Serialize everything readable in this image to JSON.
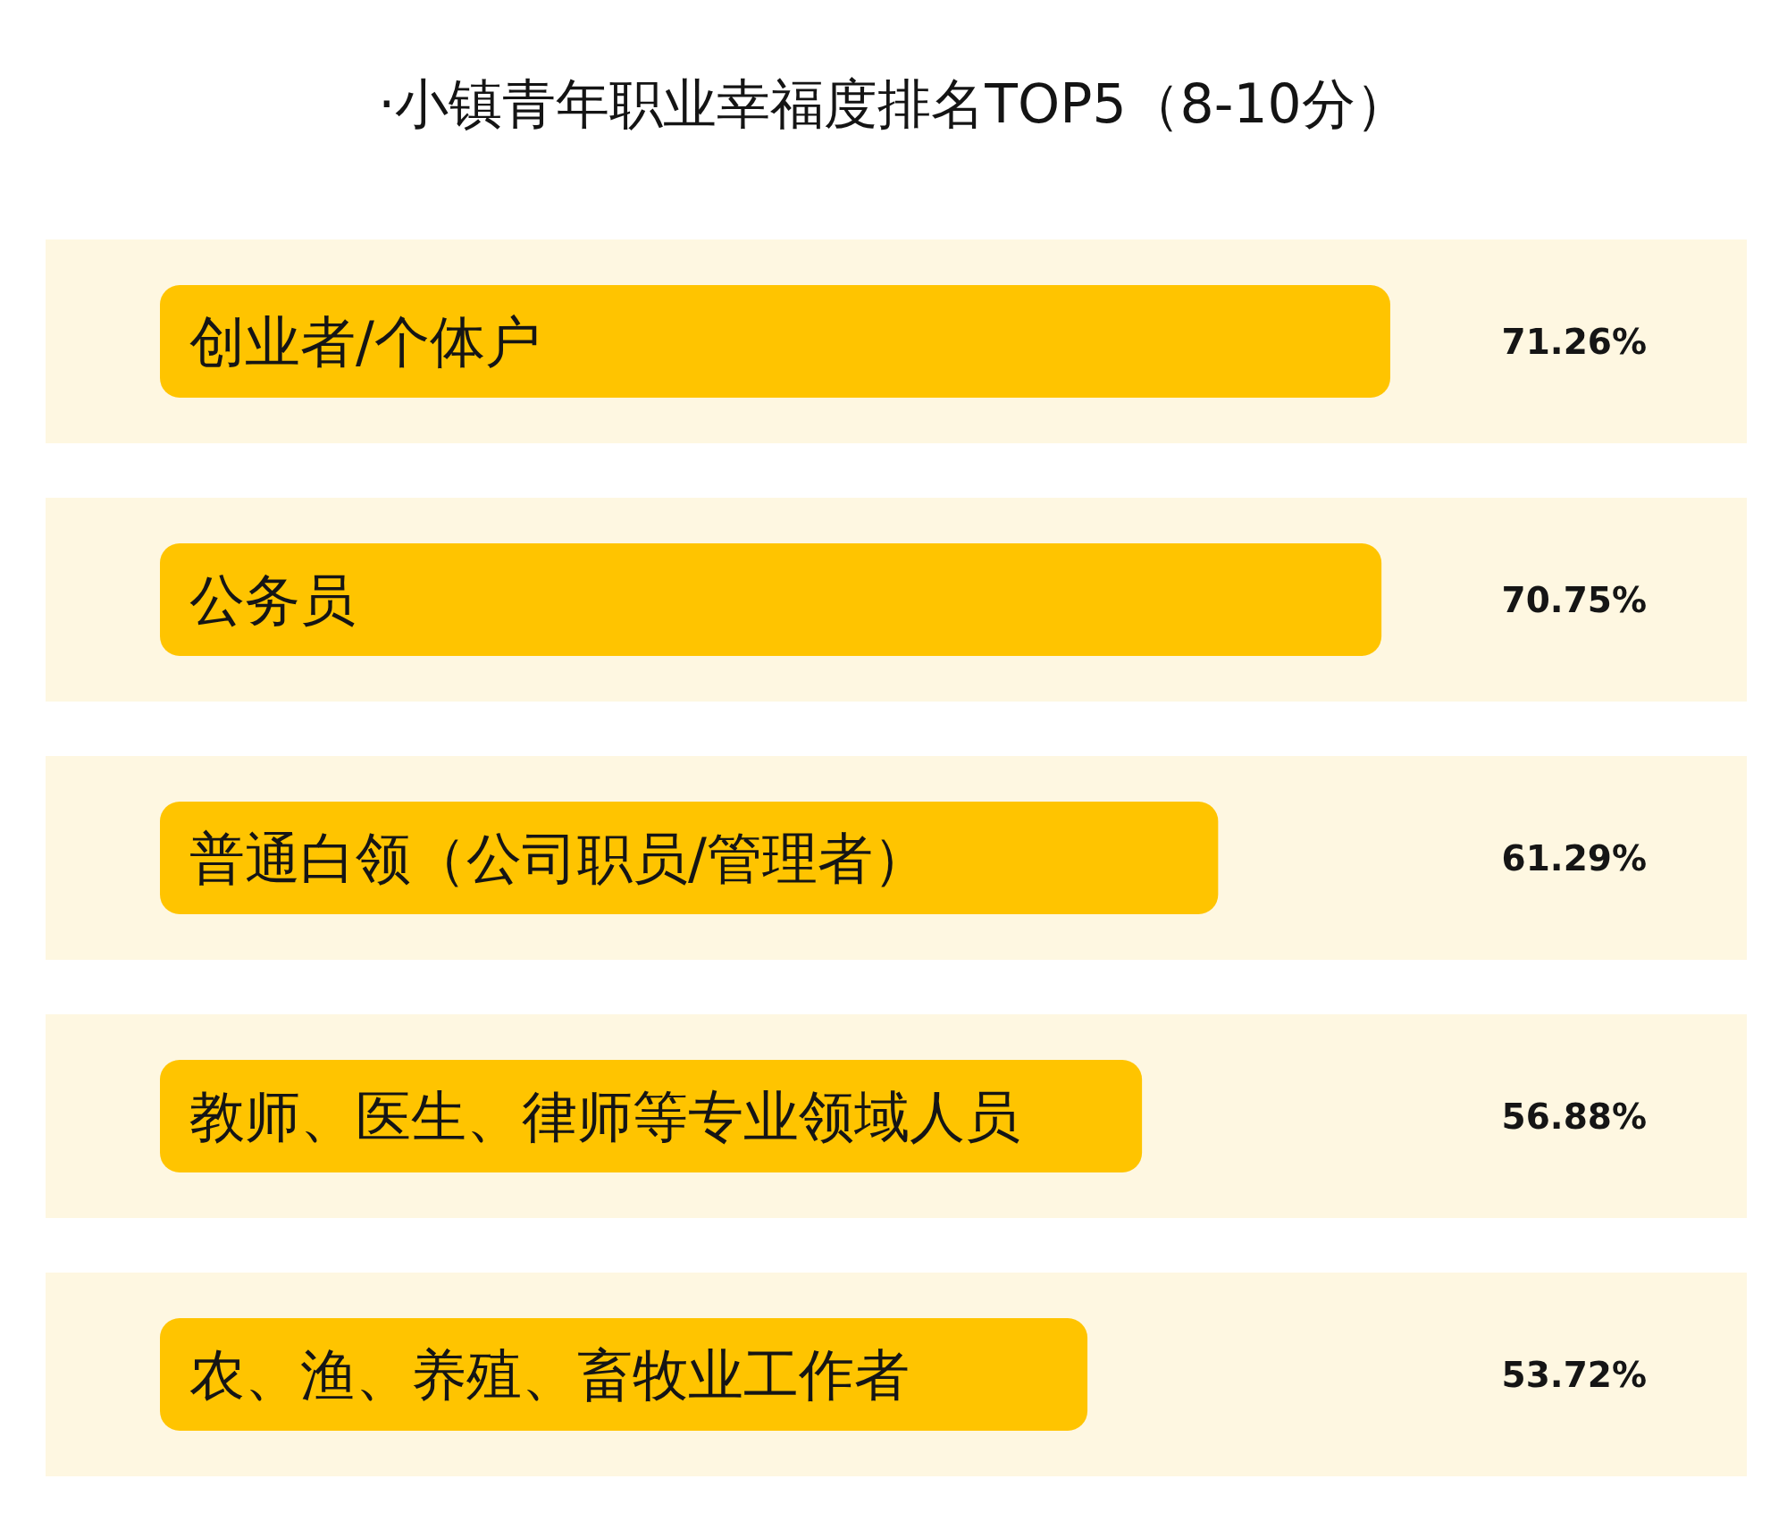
{
  "chart_data": {
    "type": "bar",
    "orientation": "horizontal",
    "title": "·小镇青年职业幸福度排名TOP5（8-10分）",
    "categories": [
      "创业者/个体户",
      "公务员",
      "普通白领（公司职员/管理者）",
      "教师、医生、律师等专业领域人员",
      "农、渔、养殖、畜牧业工作者"
    ],
    "values": [
      71.26,
      70.75,
      61.29,
      56.88,
      53.72
    ],
    "value_labels": [
      "71.26%",
      "70.75%",
      "61.29%",
      "56.88%",
      "53.72%"
    ],
    "color": "#ffc400",
    "bands": [
      {
        "axis": "y",
        "from": "创业者/个体户",
        "to": "创业者/个体户",
        "color": "#fef7e1"
      },
      {
        "axis": "y",
        "from": "公务员",
        "to": "公务员",
        "color": "#fef7e1"
      },
      {
        "axis": "y",
        "from": "普通白领（公司职员/管理者）",
        "to": "普通白领（公司职员/管理者）",
        "color": "#fef7e1"
      },
      {
        "axis": "y",
        "from": "教师、医生、律师等专业领域人员",
        "to": "教师、医生、律师等专业领域人员",
        "color": "#fef7e1"
      },
      {
        "axis": "y",
        "from": "农、渔、养殖、畜牧业工作者",
        "to": "农、渔、养殖、畜牧业工作者",
        "color": "#fef7e1"
      }
    ]
  }
}
